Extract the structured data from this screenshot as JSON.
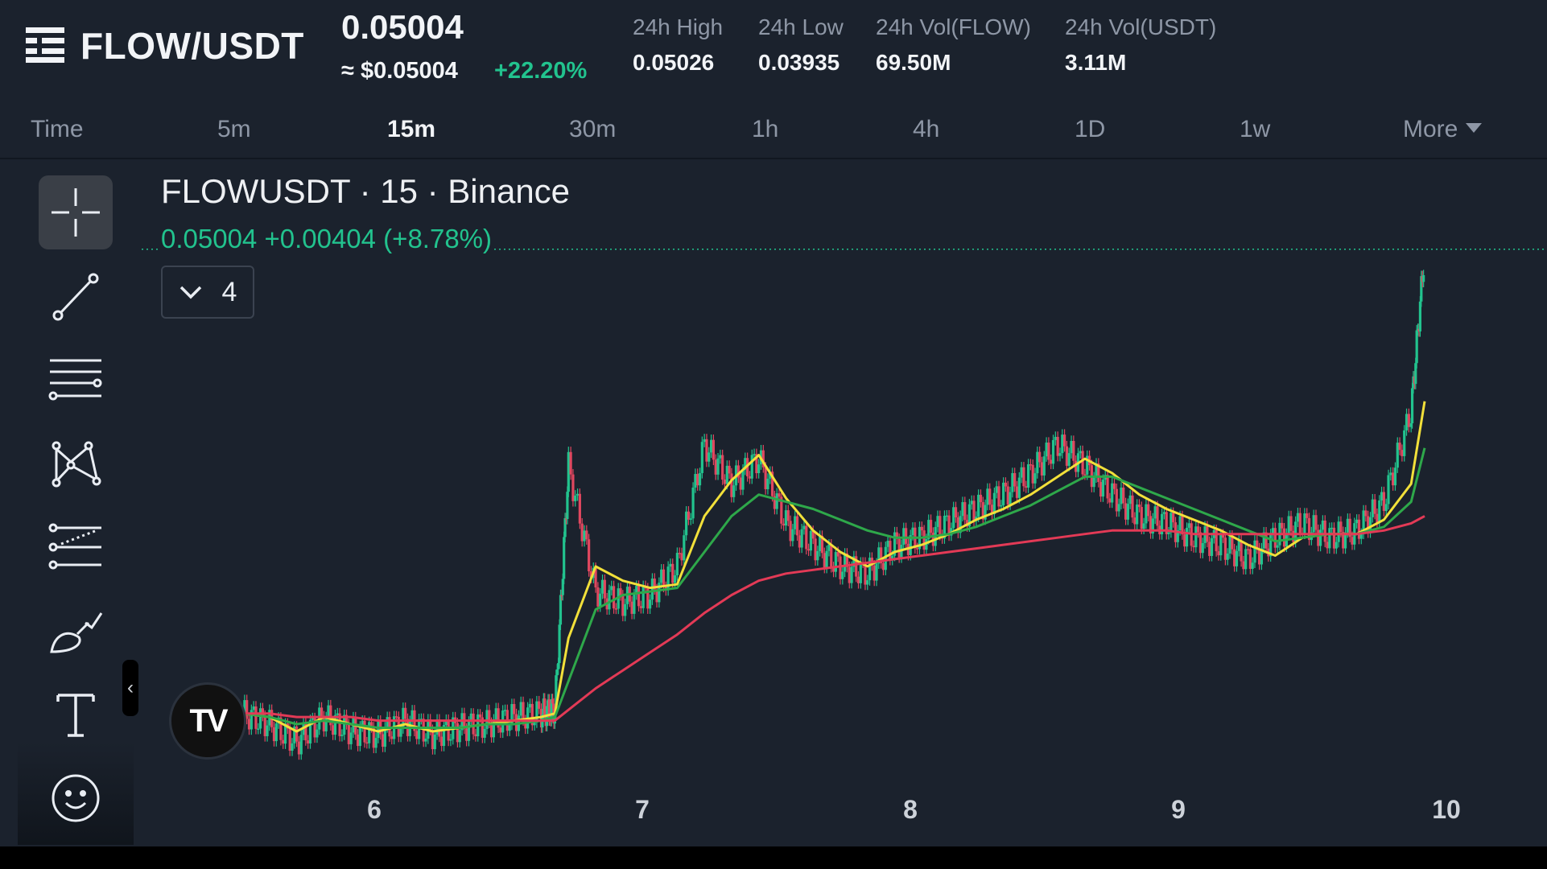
{
  "header": {
    "pair": "FLOW/USDT",
    "last_price": "0.05004",
    "approx_usd": "≈ $0.05004",
    "change_pct": "+22.20%",
    "stats": [
      {
        "label": "24h High",
        "value": "0.05026"
      },
      {
        "label": "24h Low",
        "value": "0.03935"
      },
      {
        "label": "24h Vol(FLOW)",
        "value": "69.50M"
      },
      {
        "label": "24h Vol(USDT)",
        "value": "3.11M"
      }
    ]
  },
  "tabs": {
    "time_label": "Time",
    "intervals": [
      "5m",
      "15m",
      "30m",
      "1h",
      "4h",
      "1D",
      "1w"
    ],
    "active": "15m",
    "more_label": "More"
  },
  "toolbar": {
    "tools": [
      "crosshair-icon",
      "trend-line-icon",
      "horizontal-lines-icon",
      "pattern-icon",
      "fib-icon",
      "brush-icon",
      "text-icon",
      "emoji-icon"
    ],
    "active": "crosshair-icon",
    "collapse_label": "‹"
  },
  "chart": {
    "symbol_title": "FLOWUSDT · 15 · Binance",
    "price_line": "0.05004 +0.00404 (+8.78%)",
    "indicator_count": "4",
    "logo_label": "TV",
    "colors": {
      "up": "#22c38e",
      "down": "#e0475f",
      "ma_fast": "#f2e03a",
      "ma_mid": "#2ea84a",
      "ma_slow": "#e33a56",
      "last_price_line": "#22c38e"
    }
  },
  "chart_data": {
    "type": "line",
    "x_ticks": [
      "6",
      "7",
      "8",
      "9",
      "10"
    ],
    "x": [
      5.4,
      5.5,
      5.6,
      5.7,
      5.8,
      5.9,
      6.0,
      6.1,
      6.2,
      6.3,
      6.4,
      6.5,
      6.55,
      6.6,
      6.7,
      6.8,
      6.9,
      7.0,
      7.1,
      7.2,
      7.3,
      7.4,
      7.5,
      7.6,
      7.7,
      7.8,
      7.9,
      8.0,
      8.1,
      8.2,
      8.3,
      8.4,
      8.5,
      8.6,
      8.7,
      8.8,
      8.9,
      9.0,
      9.1,
      9.2,
      9.3,
      9.4,
      9.5,
      9.6,
      9.7,
      9.75
    ],
    "series": [
      {
        "values": [
          0.0371,
          0.037,
          0.0366,
          0.037,
          0.0368,
          0.0366,
          0.0368,
          0.0366,
          0.0367,
          0.0368,
          0.0369,
          0.037,
          0.0371,
          0.0392,
          0.0412,
          0.0408,
          0.0406,
          0.0407,
          0.0426,
          0.0436,
          0.0443,
          0.0431,
          0.0422,
          0.0416,
          0.0412,
          0.0416,
          0.0418,
          0.0421,
          0.0425,
          0.0428,
          0.0432,
          0.0437,
          0.0442,
          0.0438,
          0.0432,
          0.0428,
          0.0425,
          0.0422,
          0.0418,
          0.0415,
          0.042,
          0.0421,
          0.0421,
          0.0425,
          0.0435,
          0.0458
        ]
      },
      {
        "values": [
          0.0371,
          0.037,
          0.0368,
          0.0369,
          0.0368,
          0.0367,
          0.0367,
          0.0367,
          0.0367,
          0.0368,
          0.0368,
          0.0369,
          0.037,
          0.038,
          0.04,
          0.0404,
          0.0405,
          0.0406,
          0.0416,
          0.0426,
          0.0432,
          0.043,
          0.0428,
          0.0425,
          0.0422,
          0.042,
          0.042,
          0.0421,
          0.0423,
          0.0426,
          0.0429,
          0.0433,
          0.0437,
          0.0437,
          0.0434,
          0.0431,
          0.0428,
          0.0425,
          0.0422,
          0.0419,
          0.042,
          0.0421,
          0.0421,
          0.0423,
          0.043,
          0.0445
        ]
      },
      {
        "values": [
          0.0371,
          0.0371,
          0.037,
          0.037,
          0.037,
          0.0369,
          0.0369,
          0.0369,
          0.0369,
          0.0369,
          0.0369,
          0.0369,
          0.0369,
          0.0372,
          0.0378,
          0.0383,
          0.0388,
          0.0393,
          0.0399,
          0.0404,
          0.0408,
          0.041,
          0.0411,
          0.0412,
          0.0413,
          0.0414,
          0.0415,
          0.0416,
          0.0417,
          0.0418,
          0.0419,
          0.042,
          0.0421,
          0.0422,
          0.0422,
          0.0422,
          0.0421,
          0.0421,
          0.0421,
          0.0421,
          0.0421,
          0.0421,
          0.0421,
          0.0422,
          0.0424,
          0.0426
        ]
      }
    ],
    "candles_close": [
      0.0371,
      0.0368,
      0.0363,
      0.037,
      0.0366,
      0.0365,
      0.0369,
      0.0365,
      0.0367,
      0.0368,
      0.037,
      0.0371,
      0.0372,
      0.044,
      0.0405,
      0.0402,
      0.0404,
      0.0412,
      0.0446,
      0.0435,
      0.0442,
      0.0424,
      0.0418,
      0.0412,
      0.041,
      0.0418,
      0.042,
      0.0424,
      0.0428,
      0.0432,
      0.0438,
      0.0446,
      0.044,
      0.0432,
      0.0426,
      0.0424,
      0.042,
      0.0418,
      0.0414,
      0.042,
      0.0424,
      0.042,
      0.0422,
      0.043,
      0.0455,
      0.05004
    ],
    "last_price": 0.05004,
    "ylim": [
      0.0355,
      0.0512
    ],
    "xlim": [
      5.0,
      10.2
    ],
    "grid": false
  }
}
